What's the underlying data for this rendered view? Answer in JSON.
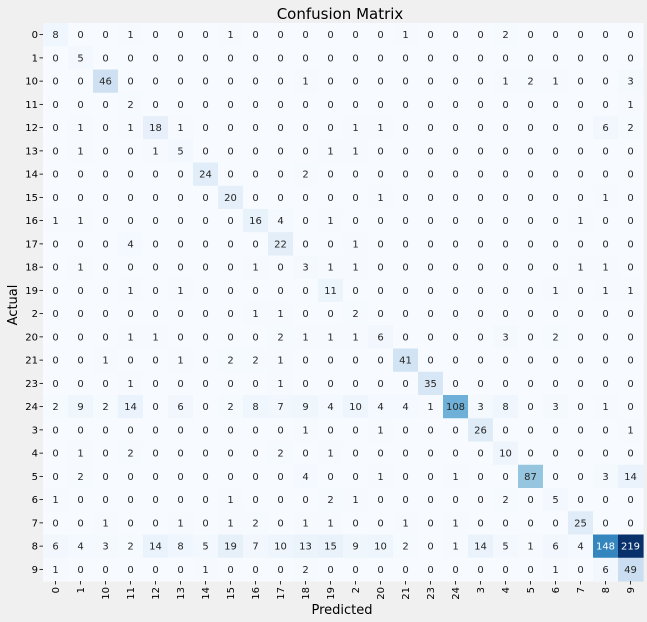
{
  "chart_data": {
    "type": "heatmap",
    "title": "Confusion Matrix",
    "xlabel": "Predicted",
    "ylabel": "Actual",
    "labels": [
      "0",
      "1",
      "10",
      "11",
      "12",
      "13",
      "14",
      "15",
      "16",
      "17",
      "18",
      "19",
      "2",
      "20",
      "21",
      "23",
      "24",
      "3",
      "4",
      "5",
      "6",
      "7",
      "8",
      "9"
    ],
    "colormap": "Blues",
    "values": [
      [
        8,
        0,
        0,
        1,
        0,
        0,
        0,
        1,
        0,
        0,
        0,
        0,
        0,
        0,
        1,
        0,
        0,
        0,
        2,
        0,
        0,
        0,
        0,
        0
      ],
      [
        0,
        5,
        0,
        0,
        0,
        0,
        0,
        0,
        0,
        0,
        0,
        0,
        0,
        0,
        0,
        0,
        0,
        0,
        0,
        0,
        0,
        0,
        0,
        0
      ],
      [
        0,
        0,
        46,
        0,
        0,
        0,
        0,
        0,
        0,
        0,
        1,
        0,
        0,
        0,
        0,
        0,
        0,
        0,
        1,
        2,
        1,
        0,
        0,
        3
      ],
      [
        0,
        0,
        0,
        2,
        0,
        0,
        0,
        0,
        0,
        0,
        0,
        0,
        0,
        0,
        0,
        0,
        0,
        0,
        0,
        0,
        0,
        0,
        0,
        1
      ],
      [
        0,
        1,
        0,
        1,
        18,
        1,
        0,
        0,
        0,
        0,
        0,
        0,
        1,
        1,
        0,
        0,
        0,
        0,
        0,
        0,
        0,
        0,
        6,
        2
      ],
      [
        0,
        1,
        0,
        0,
        1,
        5,
        0,
        0,
        0,
        0,
        0,
        1,
        1,
        0,
        0,
        0,
        0,
        0,
        0,
        0,
        0,
        0,
        0,
        0
      ],
      [
        0,
        0,
        0,
        0,
        0,
        0,
        24,
        0,
        0,
        0,
        2,
        0,
        0,
        0,
        0,
        0,
        0,
        0,
        0,
        0,
        0,
        0,
        0,
        0
      ],
      [
        0,
        0,
        0,
        0,
        0,
        0,
        0,
        20,
        0,
        0,
        0,
        0,
        0,
        1,
        0,
        0,
        0,
        0,
        0,
        0,
        0,
        0,
        1,
        0
      ],
      [
        1,
        1,
        0,
        0,
        0,
        0,
        0,
        0,
        16,
        4,
        0,
        1,
        0,
        0,
        0,
        0,
        0,
        0,
        0,
        0,
        0,
        1,
        0,
        0
      ],
      [
        0,
        0,
        0,
        4,
        0,
        0,
        0,
        0,
        0,
        22,
        0,
        0,
        1,
        0,
        0,
        0,
        0,
        0,
        0,
        0,
        0,
        0,
        0,
        0
      ],
      [
        0,
        1,
        0,
        0,
        0,
        0,
        0,
        0,
        1,
        0,
        3,
        1,
        1,
        0,
        0,
        0,
        0,
        0,
        0,
        0,
        0,
        1,
        1,
        0
      ],
      [
        0,
        0,
        0,
        1,
        0,
        1,
        0,
        0,
        0,
        0,
        0,
        11,
        0,
        0,
        0,
        0,
        0,
        0,
        0,
        0,
        1,
        0,
        1,
        1
      ],
      [
        0,
        0,
        0,
        0,
        0,
        0,
        0,
        0,
        1,
        1,
        0,
        0,
        2,
        0,
        0,
        0,
        0,
        0,
        0,
        0,
        0,
        0,
        0,
        0
      ],
      [
        0,
        0,
        0,
        1,
        1,
        0,
        0,
        0,
        0,
        2,
        1,
        1,
        1,
        6,
        0,
        0,
        0,
        0,
        3,
        0,
        2,
        0,
        0,
        0
      ],
      [
        0,
        0,
        1,
        0,
        0,
        1,
        0,
        2,
        2,
        1,
        0,
        0,
        0,
        0,
        41,
        0,
        0,
        0,
        0,
        0,
        0,
        0,
        0,
        0
      ],
      [
        0,
        0,
        0,
        1,
        0,
        0,
        0,
        0,
        0,
        1,
        0,
        0,
        0,
        0,
        0,
        35,
        0,
        0,
        0,
        0,
        0,
        0,
        0,
        0
      ],
      [
        2,
        9,
        2,
        14,
        0,
        6,
        0,
        2,
        8,
        7,
        9,
        4,
        10,
        4,
        4,
        1,
        108,
        3,
        8,
        0,
        3,
        0,
        1,
        0
      ],
      [
        0,
        0,
        0,
        0,
        0,
        0,
        0,
        0,
        0,
        0,
        1,
        0,
        0,
        1,
        0,
        0,
        0,
        26,
        0,
        0,
        0,
        0,
        0,
        1
      ],
      [
        0,
        1,
        0,
        2,
        0,
        0,
        0,
        0,
        0,
        2,
        0,
        1,
        0,
        0,
        0,
        0,
        0,
        0,
        10,
        0,
        0,
        0,
        0,
        0
      ],
      [
        0,
        2,
        0,
        0,
        0,
        0,
        0,
        0,
        0,
        0,
        4,
        0,
        0,
        1,
        0,
        0,
        1,
        0,
        0,
        87,
        0,
        0,
        3,
        14
      ],
      [
        1,
        0,
        0,
        0,
        0,
        0,
        0,
        1,
        0,
        0,
        0,
        2,
        1,
        0,
        0,
        0,
        0,
        0,
        2,
        0,
        5,
        0,
        0,
        0
      ],
      [
        0,
        0,
        1,
        0,
        0,
        1,
        0,
        1,
        2,
        0,
        1,
        1,
        0,
        0,
        1,
        0,
        1,
        0,
        0,
        0,
        0,
        25,
        0,
        0
      ],
      [
        6,
        4,
        3,
        2,
        14,
        8,
        5,
        19,
        7,
        10,
        13,
        15,
        9,
        10,
        2,
        0,
        1,
        14,
        5,
        1,
        6,
        4,
        148,
        219
      ],
      [
        1,
        0,
        0,
        0,
        0,
        0,
        1,
        0,
        0,
        0,
        2,
        0,
        0,
        0,
        0,
        0,
        0,
        0,
        0,
        0,
        1,
        0,
        6,
        49
      ]
    ]
  }
}
